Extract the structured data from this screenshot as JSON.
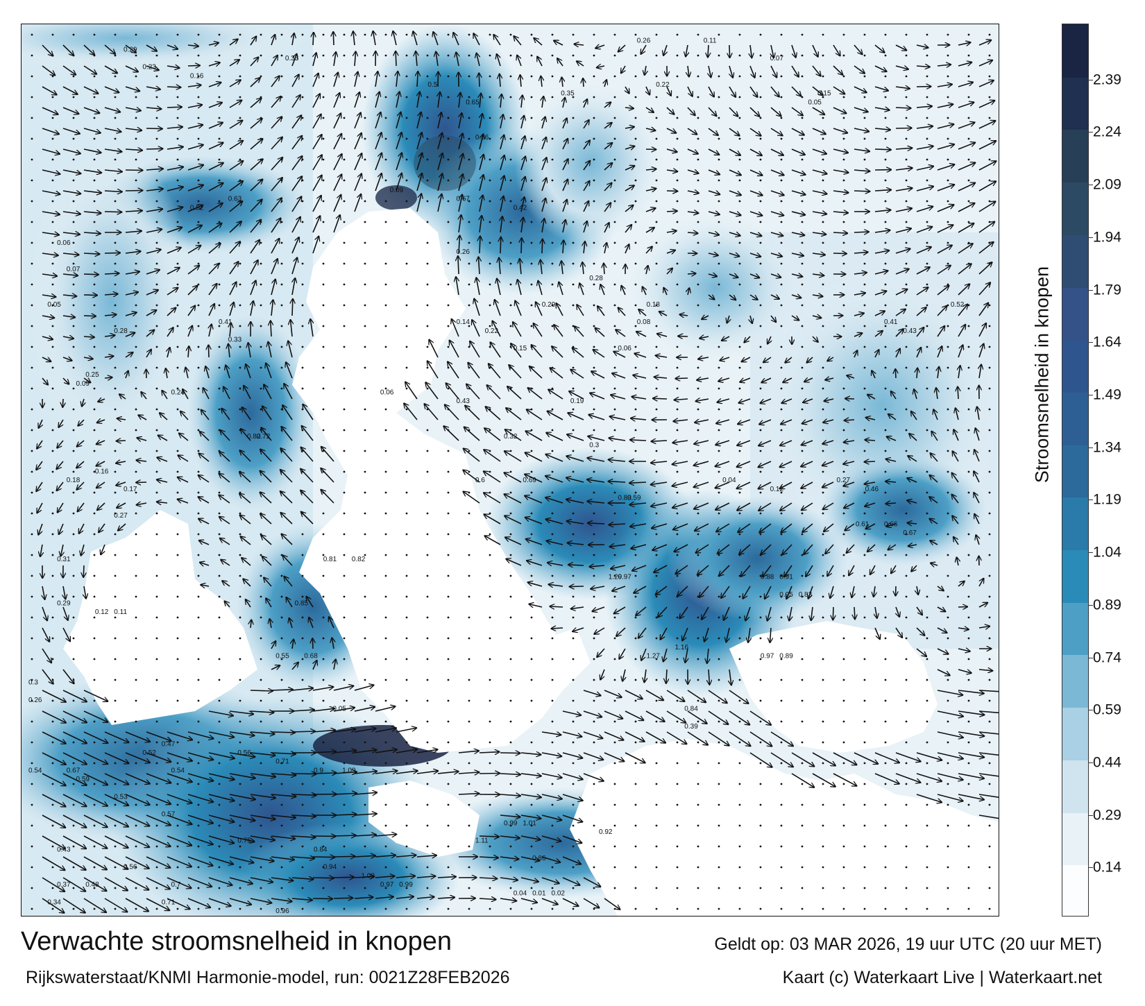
{
  "title": "Verwachte stroomsnelheid in knopen",
  "subtitle": "Rijkswaterstaat/KNMI Harmonie-model, run: 0021Z28FEB2026",
  "valid_time": "Geldt op: 03 MAR 2026, 19 uur UTC (20 uur MET)",
  "credit": "Kaart (c) Waterkaart Live | Waterkaart.net",
  "colorbar": {
    "label": "Stroomsnelheid in knopen",
    "ticks": [
      "2.39",
      "2.24",
      "2.09",
      "1.94",
      "1.79",
      "1.64",
      "1.49",
      "1.34",
      "1.19",
      "1.04",
      "0.89",
      "0.74",
      "0.59",
      "0.44",
      "0.29",
      "0.14"
    ],
    "colors": [
      "#fbfdfe",
      "#e8f2f7",
      "#cfe4ef",
      "#a9d0e4",
      "#7ab8d6",
      "#4d9fc6",
      "#2b8bb8",
      "#2a7ba9",
      "#2c6a9c",
      "#2d5f95",
      "#2f558e",
      "#355288",
      "#2f4c73",
      "#2c4a63",
      "#283f58",
      "#203050",
      "#1a2544"
    ]
  },
  "map": {
    "sample_labels": [
      {
        "text": "0.29",
        "lon": 0.1,
        "lat": 0.02
      },
      {
        "text": "0.23",
        "lon": 0.12,
        "lat": 0.04
      },
      {
        "text": "0.16",
        "lon": 0.17,
        "lat": 0.05
      },
      {
        "text": "0.33",
        "lon": 0.27,
        "lat": 0.03
      },
      {
        "text": "0.5",
        "lon": 0.42,
        "lat": 0.06
      },
      {
        "text": "0.65",
        "lon": 0.46,
        "lat": 0.08
      },
      {
        "text": "0.26",
        "lon": 0.64,
        "lat": 0.01
      },
      {
        "text": "0.86",
        "lon": 0.47,
        "lat": 0.12
      },
      {
        "text": "0.67",
        "lon": 0.45,
        "lat": 0.19
      },
      {
        "text": "0.42",
        "lon": 0.51,
        "lat": 0.2
      },
      {
        "text": "0.35",
        "lon": 0.56,
        "lat": 0.07
      },
      {
        "text": "0.22",
        "lon": 0.66,
        "lat": 0.06
      },
      {
        "text": "0.11",
        "lon": 0.71,
        "lat": 0.01
      },
      {
        "text": "0.07",
        "lon": 0.78,
        "lat": 0.03
      },
      {
        "text": "0.15",
        "lon": 0.83,
        "lat": 0.07
      },
      {
        "text": "0.05",
        "lon": 0.82,
        "lat": 0.08
      },
      {
        "text": "0.52",
        "lon": 0.17,
        "lat": 0.2
      },
      {
        "text": "0.63",
        "lon": 0.21,
        "lat": 0.19
      },
      {
        "text": "0.09",
        "lon": 0.38,
        "lat": 0.18
      },
      {
        "text": "0.26",
        "lon": 0.45,
        "lat": 0.25
      },
      {
        "text": "0.06",
        "lon": 0.03,
        "lat": 0.24
      },
      {
        "text": "0.07",
        "lon": 0.04,
        "lat": 0.27
      },
      {
        "text": "0.05",
        "lon": 0.02,
        "lat": 0.31
      },
      {
        "text": "0.28",
        "lon": 0.09,
        "lat": 0.34
      },
      {
        "text": "0.33",
        "lon": 0.21,
        "lat": 0.35
      },
      {
        "text": "0.41",
        "lon": 0.2,
        "lat": 0.33
      },
      {
        "text": "0.14",
        "lon": 0.45,
        "lat": 0.33
      },
      {
        "text": "0.22",
        "lon": 0.48,
        "lat": 0.34
      },
      {
        "text": "0.29",
        "lon": 0.54,
        "lat": 0.31
      },
      {
        "text": "0.28",
        "lon": 0.59,
        "lat": 0.28
      },
      {
        "text": "0.18",
        "lon": 0.65,
        "lat": 0.31
      },
      {
        "text": "0.08",
        "lon": 0.64,
        "lat": 0.33
      },
      {
        "text": "0.15",
        "lon": 0.51,
        "lat": 0.36
      },
      {
        "text": "0.06",
        "lon": 0.62,
        "lat": 0.36
      },
      {
        "text": "0.41",
        "lon": 0.9,
        "lat": 0.33
      },
      {
        "text": "0.43",
        "lon": 0.92,
        "lat": 0.34
      },
      {
        "text": "0.52",
        "lon": 0.97,
        "lat": 0.31
      },
      {
        "text": "0.25",
        "lon": 0.06,
        "lat": 0.39
      },
      {
        "text": "0.09",
        "lon": 0.05,
        "lat": 0.4
      },
      {
        "text": "0.24",
        "lon": 0.15,
        "lat": 0.41
      },
      {
        "text": "0.82",
        "lon": 0.23,
        "lat": 0.46
      },
      {
        "text": "0.72",
        "lon": 0.24,
        "lat": 0.46
      },
      {
        "text": "0.06",
        "lon": 0.37,
        "lat": 0.41
      },
      {
        "text": "0.43",
        "lon": 0.45,
        "lat": 0.42
      },
      {
        "text": "0.19",
        "lon": 0.57,
        "lat": 0.42
      },
      {
        "text": "0.32",
        "lon": 0.5,
        "lat": 0.46
      },
      {
        "text": "0.3",
        "lon": 0.59,
        "lat": 0.47
      },
      {
        "text": "0.04",
        "lon": 0.73,
        "lat": 0.51
      },
      {
        "text": "0.12",
        "lon": 0.78,
        "lat": 0.52
      },
      {
        "text": "0.27",
        "lon": 0.85,
        "lat": 0.51
      },
      {
        "text": "0.46",
        "lon": 0.88,
        "lat": 0.52
      },
      {
        "text": "0.16",
        "lon": 0.07,
        "lat": 0.5
      },
      {
        "text": "0.18",
        "lon": 0.04,
        "lat": 0.51
      },
      {
        "text": "0.17",
        "lon": 0.1,
        "lat": 0.52
      },
      {
        "text": "0.27",
        "lon": 0.09,
        "lat": 0.55
      },
      {
        "text": "0.6",
        "lon": 0.47,
        "lat": 0.51
      },
      {
        "text": "0.69",
        "lon": 0.52,
        "lat": 0.51
      },
      {
        "text": "0.83",
        "lon": 0.62,
        "lat": 0.53
      },
      {
        "text": "0.59",
        "lon": 0.63,
        "lat": 0.53
      },
      {
        "text": "0.61",
        "lon": 0.87,
        "lat": 0.56
      },
      {
        "text": "0.66",
        "lon": 0.9,
        "lat": 0.56
      },
      {
        "text": "0.67",
        "lon": 0.92,
        "lat": 0.57
      },
      {
        "text": "0.31",
        "lon": 0.03,
        "lat": 0.6
      },
      {
        "text": "0.29",
        "lon": 0.03,
        "lat": 0.65
      },
      {
        "text": "0.12",
        "lon": 0.07,
        "lat": 0.66
      },
      {
        "text": "0.11",
        "lon": 0.09,
        "lat": 0.66
      },
      {
        "text": "0.81",
        "lon": 0.31,
        "lat": 0.6
      },
      {
        "text": "0.82",
        "lon": 0.34,
        "lat": 0.6
      },
      {
        "text": "0.85",
        "lon": 0.28,
        "lat": 0.65
      },
      {
        "text": "1.29",
        "lon": 0.61,
        "lat": 0.62
      },
      {
        "text": "0.97",
        "lon": 0.62,
        "lat": 0.62
      },
      {
        "text": "0.95",
        "lon": 0.79,
        "lat": 0.64
      },
      {
        "text": "0.83",
        "lon": 0.81,
        "lat": 0.64
      },
      {
        "text": "0.88",
        "lon": 0.77,
        "lat": 0.62
      },
      {
        "text": "0.91",
        "lon": 0.79,
        "lat": 0.62
      },
      {
        "text": "0.55",
        "lon": 0.26,
        "lat": 0.71
      },
      {
        "text": "0.68",
        "lon": 0.29,
        "lat": 0.71
      },
      {
        "text": "1.27",
        "lon": 0.65,
        "lat": 0.71
      },
      {
        "text": "1.16",
        "lon": 0.68,
        "lat": 0.7
      },
      {
        "text": "0.97",
        "lon": 0.77,
        "lat": 0.71
      },
      {
        "text": "0.89",
        "lon": 0.79,
        "lat": 0.71
      },
      {
        "text": "0.26",
        "lon": 0.0,
        "lat": 0.76
      },
      {
        "text": "0.3",
        "lon": 0.0,
        "lat": 0.74
      },
      {
        "text": "0.05",
        "lon": 0.32,
        "lat": 0.77
      },
      {
        "text": "0.47",
        "lon": 0.14,
        "lat": 0.81
      },
      {
        "text": "0.52",
        "lon": 0.12,
        "lat": 0.82
      },
      {
        "text": "0.54",
        "lon": 0.15,
        "lat": 0.84
      },
      {
        "text": "0.56",
        "lon": 0.22,
        "lat": 0.82
      },
      {
        "text": "0.71",
        "lon": 0.26,
        "lat": 0.83
      },
      {
        "text": "0.9",
        "lon": 0.3,
        "lat": 0.84
      },
      {
        "text": "1.09",
        "lon": 0.33,
        "lat": 0.84
      },
      {
        "text": "0.84",
        "lon": 0.69,
        "lat": 0.77
      },
      {
        "text": "0.39",
        "lon": 0.69,
        "lat": 0.79
      },
      {
        "text": "0.54",
        "lon": 0.0,
        "lat": 0.84
      },
      {
        "text": "0.67",
        "lon": 0.04,
        "lat": 0.84
      },
      {
        "text": "0.59",
        "lon": 0.05,
        "lat": 0.85
      },
      {
        "text": "0.53",
        "lon": 0.09,
        "lat": 0.87
      },
      {
        "text": "0.57",
        "lon": 0.14,
        "lat": 0.89
      },
      {
        "text": "0.75",
        "lon": 0.22,
        "lat": 0.92
      },
      {
        "text": "0.84",
        "lon": 0.3,
        "lat": 0.93
      },
      {
        "text": "0.94",
        "lon": 0.31,
        "lat": 0.95
      },
      {
        "text": "1.08",
        "lon": 0.35,
        "lat": 0.96
      },
      {
        "text": "0.97",
        "lon": 0.37,
        "lat": 0.97
      },
      {
        "text": "0.99",
        "lon": 0.39,
        "lat": 0.97
      },
      {
        "text": "1.11",
        "lon": 0.47,
        "lat": 0.92
      },
      {
        "text": "0.99",
        "lon": 0.5,
        "lat": 0.9
      },
      {
        "text": "1.01",
        "lon": 0.52,
        "lat": 0.9
      },
      {
        "text": "0.92",
        "lon": 0.6,
        "lat": 0.91
      },
      {
        "text": "0.86",
        "lon": 0.53,
        "lat": 0.94
      },
      {
        "text": "0.43",
        "lon": 0.03,
        "lat": 0.93
      },
      {
        "text": "0.37",
        "lon": 0.03,
        "lat": 0.97
      },
      {
        "text": "0.34",
        "lon": 0.02,
        "lat": 0.99
      },
      {
        "text": "0.48",
        "lon": 0.06,
        "lat": 0.97
      },
      {
        "text": "0.56",
        "lon": 0.1,
        "lat": 0.95
      },
      {
        "text": "0.7",
        "lon": 0.15,
        "lat": 0.97
      },
      {
        "text": "0.71",
        "lon": 0.14,
        "lat": 0.99
      },
      {
        "text": "0.96",
        "lon": 0.26,
        "lat": 1.0
      },
      {
        "text": "0.04",
        "lon": 0.51,
        "lat": 0.98
      },
      {
        "text": "0.01",
        "lon": 0.53,
        "lat": 0.98
      },
      {
        "text": "0.02",
        "lon": 0.55,
        "lat": 0.98
      }
    ]
  }
}
